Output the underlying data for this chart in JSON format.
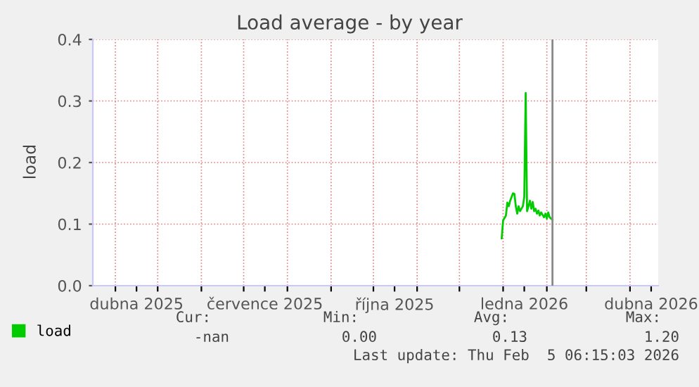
{
  "chart_data": {
    "type": "line",
    "title": "Load average - by year",
    "ylabel": "load",
    "x": [
      "2025-12-31",
      "2026-01-01",
      "2026-01-03",
      "2026-01-04",
      "2026-01-05",
      "2026-01-06",
      "2026-01-07",
      "2026-01-08",
      "2026-01-09",
      "2026-01-10",
      "2026-01-11",
      "2026-01-12",
      "2026-01-13",
      "2026-01-14",
      "2026-01-15",
      "2026-01-16",
      "2026-01-17",
      "2026-01-18",
      "2026-01-19",
      "2026-01-20",
      "2026-01-21",
      "2026-01-22",
      "2026-01-23",
      "2026-01-24",
      "2026-01-25",
      "2026-01-26",
      "2026-01-27",
      "2026-01-28",
      "2026-01-30",
      "2026-01-31",
      "2026-02-01",
      "2026-02-02",
      "2026-02-03",
      "2026-02-05"
    ],
    "series": [
      {
        "name": "load",
        "color": "#00cc00",
        "values": [
          0.077,
          0.106,
          0.114,
          0.135,
          0.129,
          0.138,
          0.144,
          0.15,
          0.149,
          0.129,
          0.117,
          0.129,
          0.121,
          0.125,
          0.129,
          0.144,
          0.313,
          0.121,
          0.129,
          0.138,
          0.125,
          0.136,
          0.121,
          0.125,
          0.117,
          0.122,
          0.114,
          0.119,
          0.111,
          0.117,
          0.109,
          0.119,
          0.111,
          0.107
        ]
      }
    ],
    "xlim": [
      "2025-03-16",
      "2026-04-21"
    ],
    "xticks": [
      {
        "value": "2025-04-01",
        "label": null
      },
      {
        "value": "2025-04-16",
        "label": "dubna 2025"
      },
      {
        "value": "2025-05-01",
        "label": null
      },
      {
        "value": "2025-06-01",
        "label": null
      },
      {
        "value": "2025-07-01",
        "label": null
      },
      {
        "value": "2025-07-16",
        "label": "července 2025"
      },
      {
        "value": "2025-08-01",
        "label": null
      },
      {
        "value": "2025-09-01",
        "label": null
      },
      {
        "value": "2025-10-01",
        "label": null
      },
      {
        "value": "2025-10-16",
        "label": "října 2025"
      },
      {
        "value": "2025-11-01",
        "label": null
      },
      {
        "value": "2025-12-01",
        "label": null
      },
      {
        "value": "2026-01-01",
        "label": null
      },
      {
        "value": "2026-01-16",
        "label": "ledna 2026"
      },
      {
        "value": "2026-02-01",
        "label": null
      },
      {
        "value": "2026-03-01",
        "label": null
      },
      {
        "value": "2026-04-01",
        "label": null
      },
      {
        "value": "2026-04-16",
        "label": "dubna 2026"
      }
    ],
    "ylim": [
      0,
      0.4
    ],
    "yticks": [
      {
        "value": 0,
        "label": "0.0"
      },
      {
        "value": 0.1,
        "label": "0.1"
      },
      {
        "value": 0.2,
        "label": "0.2"
      },
      {
        "value": 0.3,
        "label": "0.3"
      },
      {
        "value": 0.4,
        "label": "0.4"
      }
    ],
    "grid": true,
    "legend": "bottom left",
    "marker": "none",
    "line_style": "solid",
    "ref_lines": [
      {
        "axis": "x",
        "value": "2026-02-05",
        "color": "#888888"
      }
    ],
    "annotations": [
      "Cur:",
      "Min:",
      "Avg:",
      "Max:",
      "-nan",
      "0.00",
      "0.13",
      "1.20",
      "Last update: Thu Feb  5 06:15:03 2026"
    ]
  }
}
